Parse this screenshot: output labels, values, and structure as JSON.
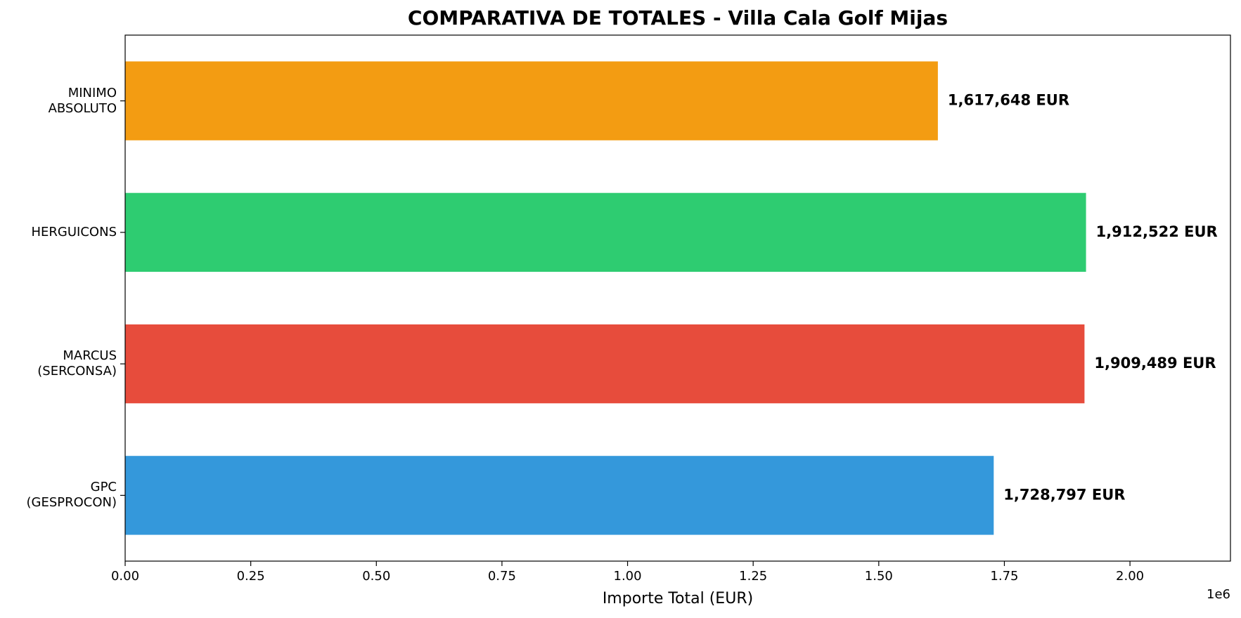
{
  "chart_data": {
    "type": "barh",
    "title": "COMPARATIVA DE TOTALES - Villa Cala Golf Mijas",
    "x_label": "Importe Total (EUR)",
    "x_offset_label": "1e6",
    "categories": [
      "GPC\n(GESPROCON)",
      "MARCUS\n(SERCONSA)",
      "HERGUICONS",
      "MINIMO\nABSOLUTO"
    ],
    "values": [
      1728797,
      1909489,
      1912522,
      1617648
    ],
    "value_labels": [
      "1,728,797 EUR",
      "1,909,489 EUR",
      "1,912,522 EUR",
      "1,617,648 EUR"
    ],
    "colors": [
      "#3498db",
      "#e74c3c",
      "#2ecc71",
      "#f39c12"
    ],
    "xlim": [
      0,
      2200000
    ],
    "xticks": [
      {
        "value": 0,
        "label": "0.00"
      },
      {
        "value": 250000,
        "label": "0.25"
      },
      {
        "value": 500000,
        "label": "0.50"
      },
      {
        "value": 750000,
        "label": "0.75"
      },
      {
        "value": 1000000,
        "label": "1.00"
      },
      {
        "value": 1250000,
        "label": "1.25"
      },
      {
        "value": 1500000,
        "label": "1.50"
      },
      {
        "value": 1750000,
        "label": "1.75"
      },
      {
        "value": 2000000,
        "label": "2.00"
      }
    ],
    "grid": false
  }
}
